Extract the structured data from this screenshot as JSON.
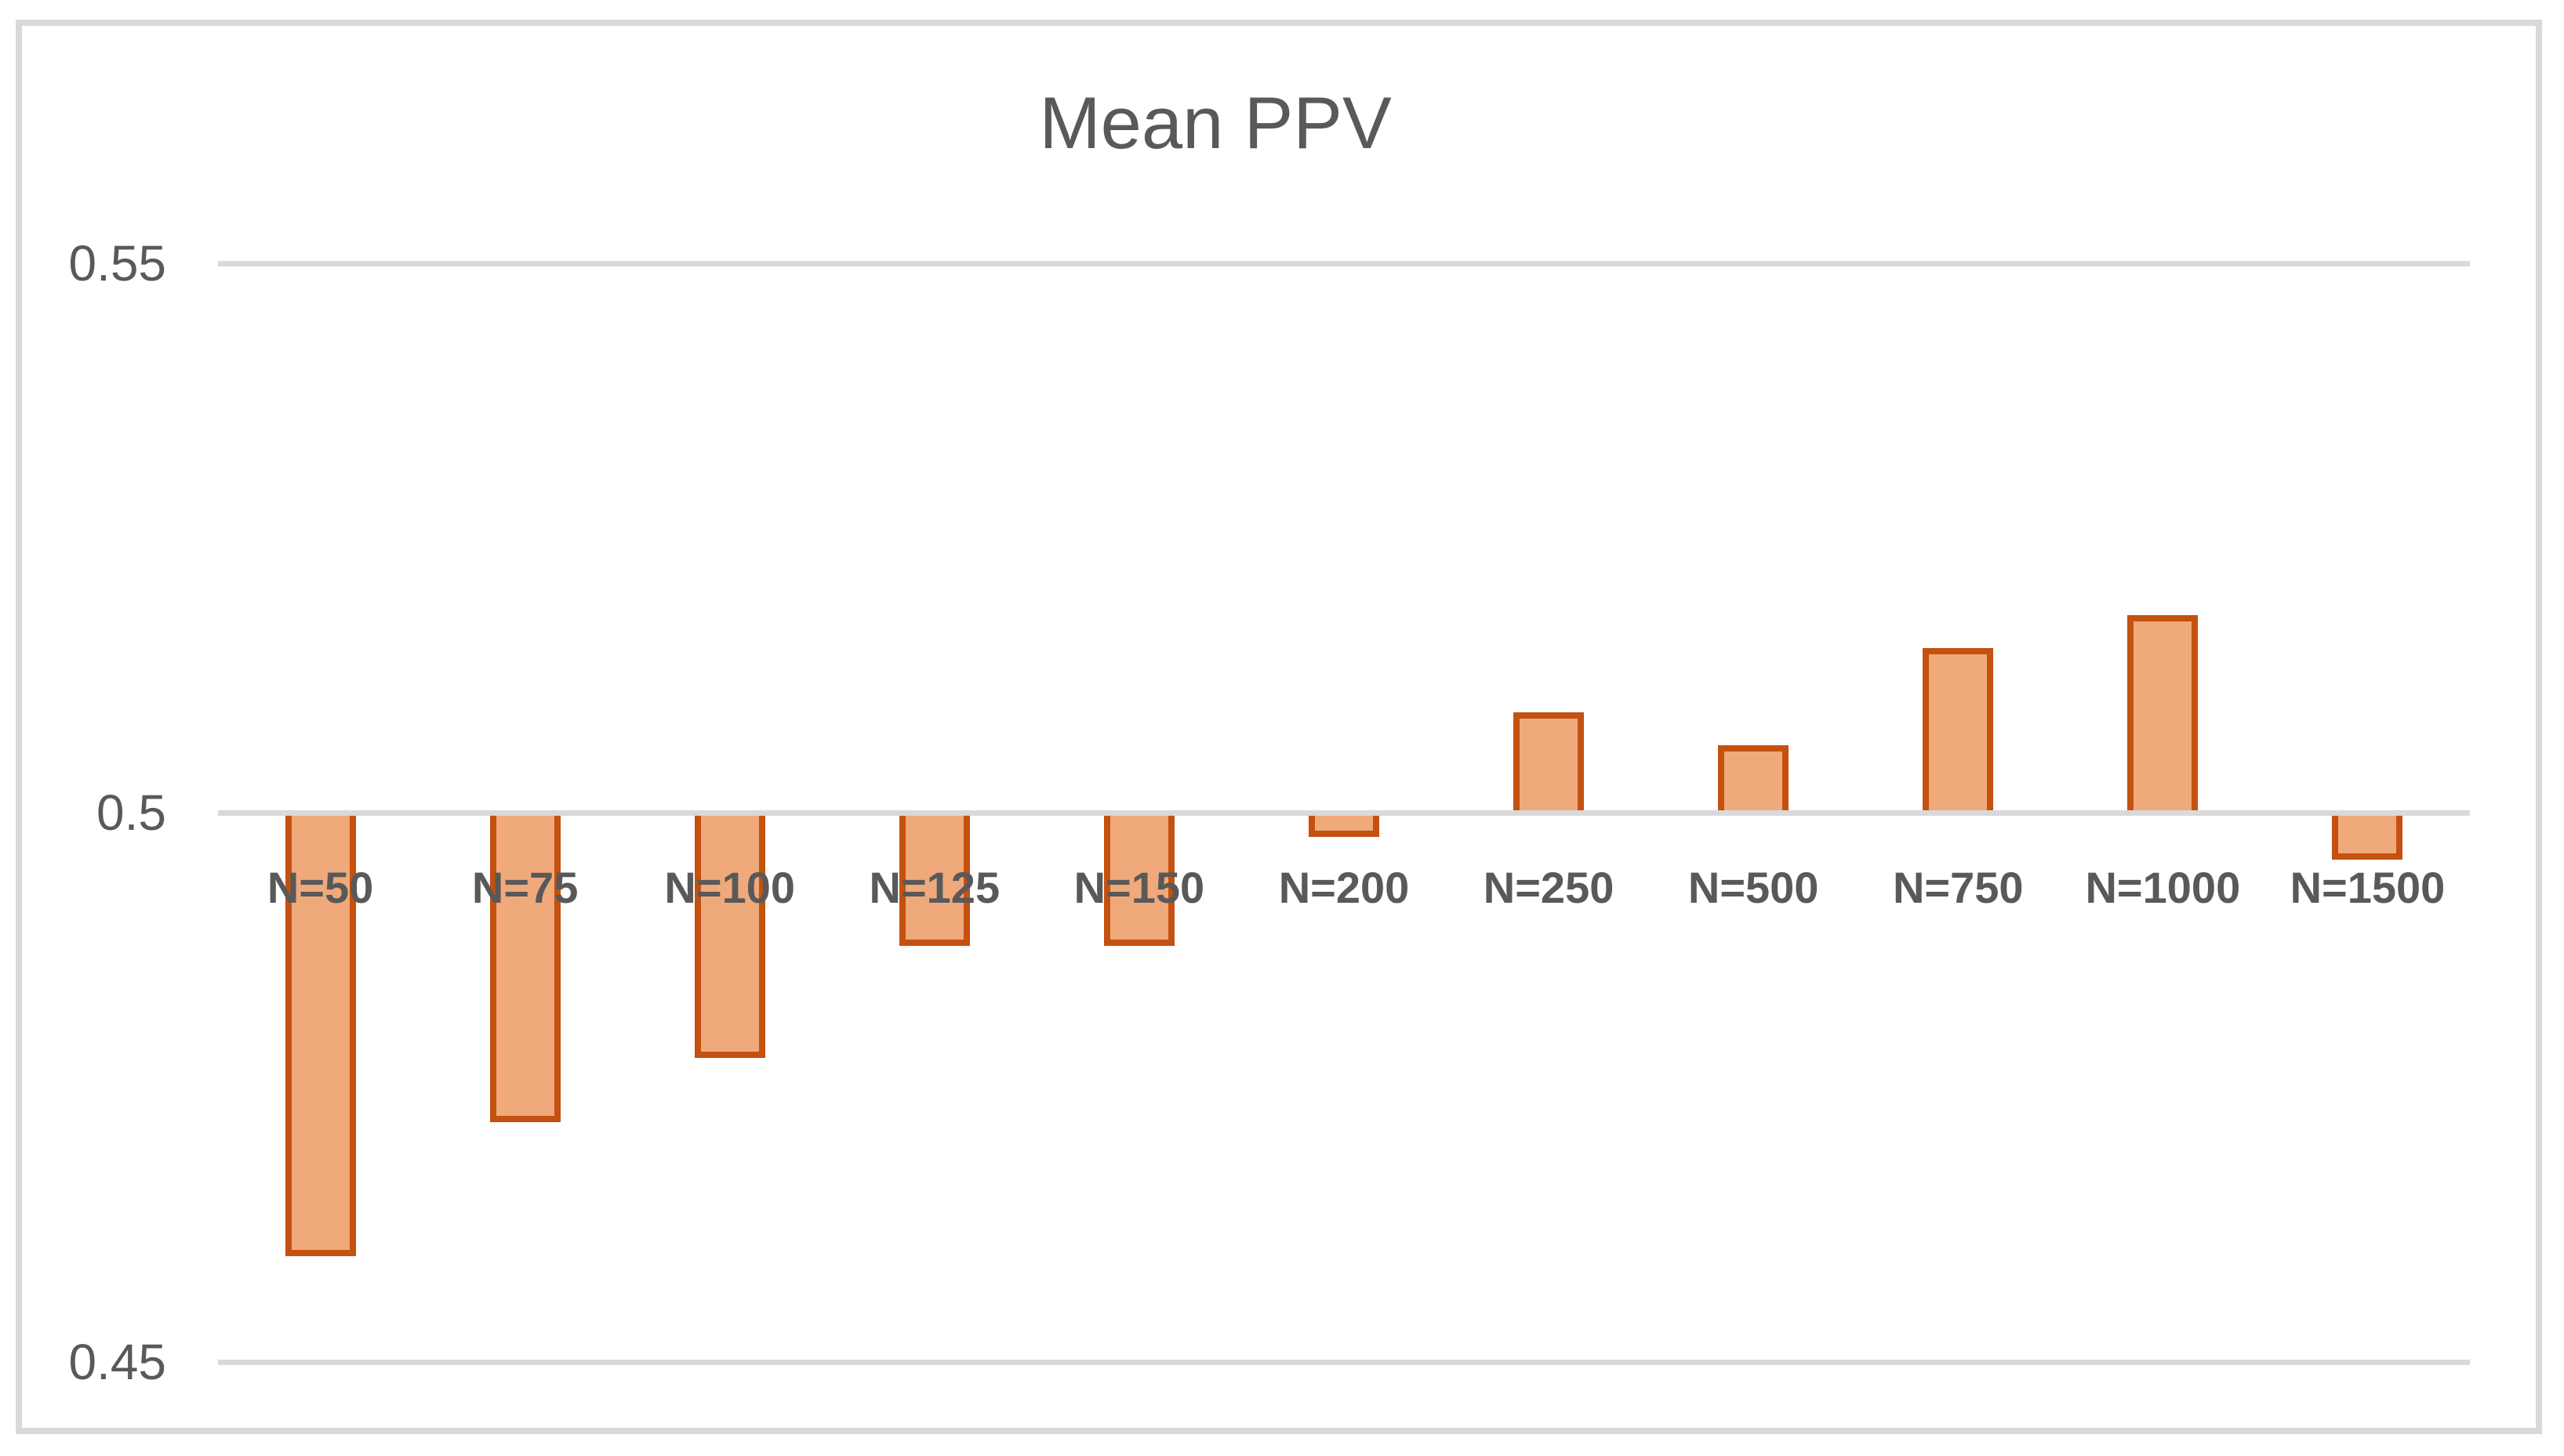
{
  "chart_data": {
    "type": "bar",
    "title": "Mean PPV",
    "categories": [
      "N=50",
      "N=75",
      "N=100",
      "N=125",
      "N=150",
      "N=200",
      "N=250",
      "N=500",
      "N=750",
      "N=1000",
      "N=1500"
    ],
    "values": [
      0.4596,
      0.4718,
      0.4777,
      0.4879,
      0.4879,
      0.4978,
      0.5091,
      0.5061,
      0.515,
      0.518,
      0.4957
    ],
    "baseline": 0.5,
    "yticks": [
      0.55,
      0.5,
      0.45
    ],
    "ytick_labels": [
      "0.55",
      "0.5",
      "0.45"
    ],
    "ylim": [
      0.45,
      0.55
    ],
    "xlabel": "",
    "ylabel": "",
    "grid": true,
    "legend": false,
    "gridline_orientation": "horizontal",
    "bar_fill_color": "#F0A97B",
    "bar_border_color": "#C4510F",
    "grid_color": "#D9D9D9",
    "text_color": "#595959",
    "background_color": "#FFFFFF"
  }
}
